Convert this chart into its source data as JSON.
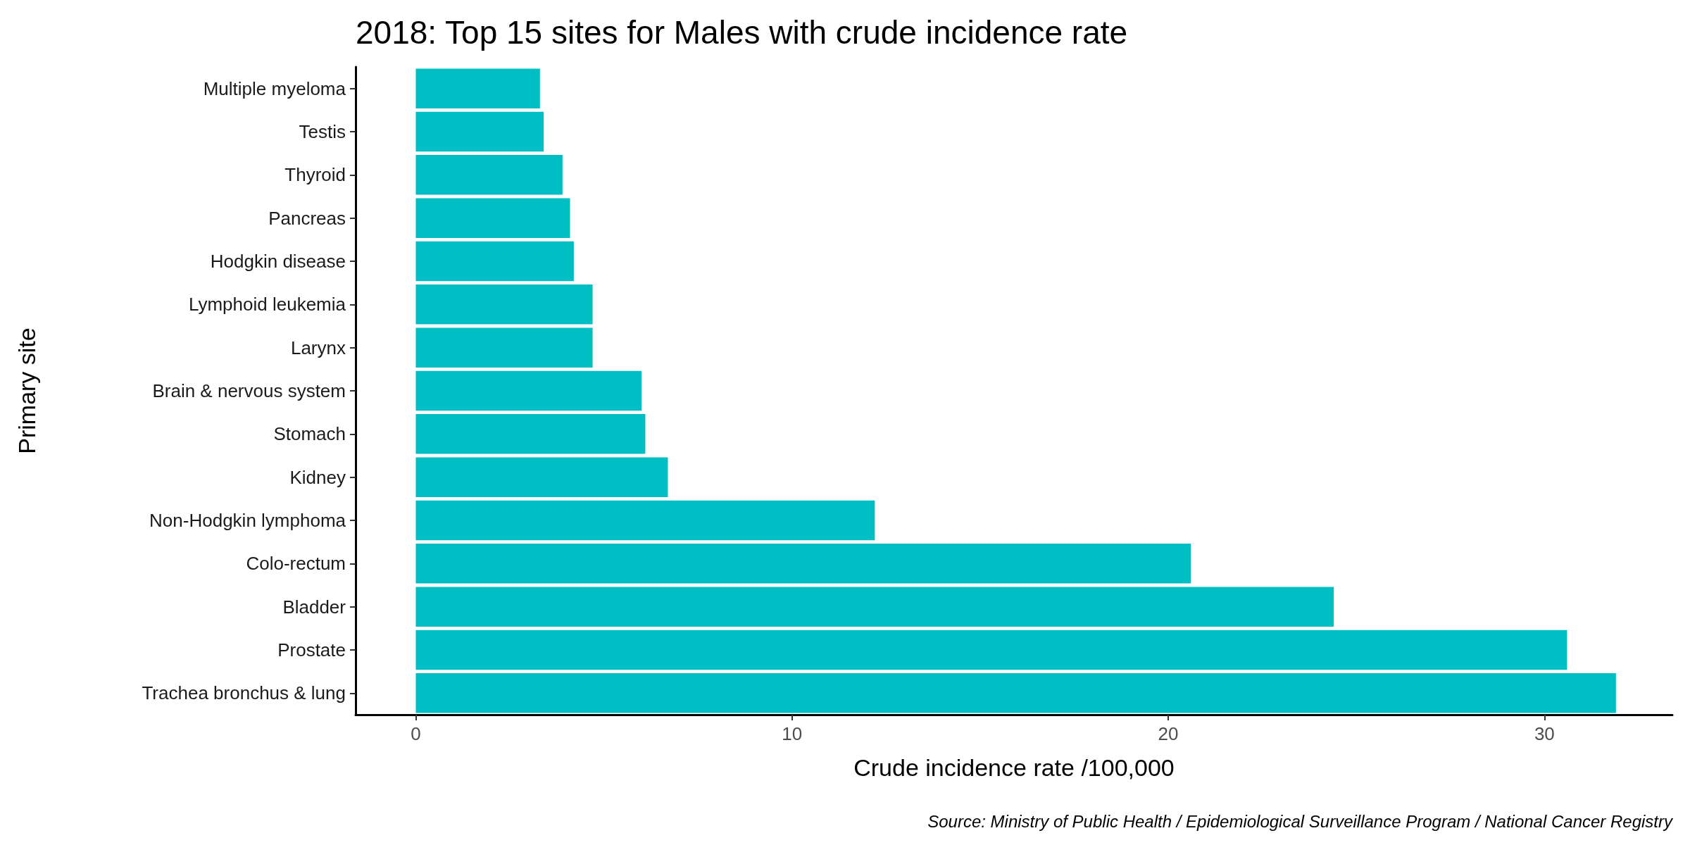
{
  "chart_data": {
    "type": "bar",
    "orientation": "horizontal",
    "title": "2018: Top 15 sites for Males with crude incidence rate",
    "xlabel": "Crude incidence rate /100,000",
    "ylabel": "Primary site",
    "categories": [
      "Multiple myeloma",
      "Testis",
      "Thyroid",
      "Pancreas",
      "Hodgkin disease",
      "Lymphoid leukemia",
      "Larynx",
      "Brain & nervous system",
      "Stomach",
      "Kidney",
      "Non-Hodgkin lymphoma",
      "Colo-rectum",
      "Bladder",
      "Prostate",
      "Trachea bronchus & lung"
    ],
    "values": [
      3.3,
      3.4,
      3.9,
      4.1,
      4.2,
      4.7,
      4.7,
      6.0,
      6.1,
      6.7,
      12.2,
      20.6,
      24.4,
      30.6,
      31.9
    ],
    "color": "#00bfc4",
    "xlim": [
      -1.6,
      33.4
    ],
    "xticks": [
      0,
      10,
      20,
      30
    ],
    "annotations": [
      "Source: Ministry of Public Health / Epidemiological Surveillance Program / National Cancer Registry"
    ]
  }
}
